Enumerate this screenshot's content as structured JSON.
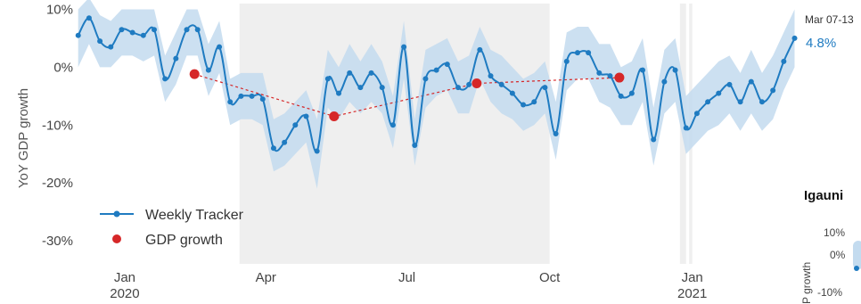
{
  "chart_data": [
    {
      "type": "line",
      "ylabel": "YoY GDP growth",
      "ylim": [
        -34,
        11
      ],
      "yticks": [
        10,
        0,
        -10,
        -20,
        -30
      ],
      "ytick_labels": [
        "10%",
        "0%",
        "-10%",
        "-20%",
        "-30%"
      ],
      "xlim": [
        "2019-12-01",
        "2021-03-10"
      ],
      "xticks": [
        {
          "date": "2020-01-01",
          "label": "Jan",
          "sublabel": "2020"
        },
        {
          "date": "2020-04-01",
          "label": "Apr",
          "sublabel": ""
        },
        {
          "date": "2020-07-01",
          "label": "Jul",
          "sublabel": ""
        },
        {
          "date": "2020-10-01",
          "label": "Oct",
          "sublabel": ""
        },
        {
          "date": "2021-01-01",
          "label": "Jan",
          "sublabel": "2021"
        }
      ],
      "shaded_periods": [
        {
          "start": "2020-03-15",
          "end": "2020-10-01"
        },
        {
          "start": "2020-12-24",
          "end": "2020-12-28"
        },
        {
          "start": "2020-12-30",
          "end": "2021-01-01"
        }
      ],
      "legend": {
        "position": "bottom-left",
        "entries": [
          "Weekly Tracker",
          "GDP growth"
        ]
      },
      "colors": {
        "tracker": "#1f7bc1",
        "band": "#c3dbef",
        "gdp": "#d62728",
        "shade": "#efefef"
      },
      "series": [
        {
          "name": "Weekly Tracker",
          "x": [
            "2019-12-02",
            "2019-12-09",
            "2019-12-16",
            "2019-12-23",
            "2019-12-30",
            "2020-01-06",
            "2020-01-13",
            "2020-01-20",
            "2020-01-27",
            "2020-02-03",
            "2020-02-10",
            "2020-02-17",
            "2020-02-24",
            "2020-03-02",
            "2020-03-09",
            "2020-03-16",
            "2020-03-23",
            "2020-03-30",
            "2020-04-06",
            "2020-04-13",
            "2020-04-20",
            "2020-04-27",
            "2020-05-04",
            "2020-05-11",
            "2020-05-18",
            "2020-05-25",
            "2020-06-01",
            "2020-06-08",
            "2020-06-15",
            "2020-06-22",
            "2020-06-29",
            "2020-07-06",
            "2020-07-13",
            "2020-07-20",
            "2020-07-27",
            "2020-08-03",
            "2020-08-10",
            "2020-08-17",
            "2020-08-24",
            "2020-08-31",
            "2020-09-07",
            "2020-09-14",
            "2020-09-21",
            "2020-09-28",
            "2020-10-05",
            "2020-10-12",
            "2020-10-19",
            "2020-10-26",
            "2020-11-02",
            "2020-11-09",
            "2020-11-16",
            "2020-11-23",
            "2020-11-30",
            "2020-12-07",
            "2020-12-14",
            "2020-12-21",
            "2020-12-28",
            "2021-01-04",
            "2021-01-11",
            "2021-01-18",
            "2021-01-25",
            "2021-02-01",
            "2021-02-08",
            "2021-02-15",
            "2021-02-22",
            "2021-03-01",
            "2021-03-08"
          ],
          "values": [
            5.5,
            8.5,
            4.5,
            3.5,
            6.5,
            6,
            5.5,
            6.5,
            -2,
            1.5,
            6.5,
            6.5,
            -0.5,
            3.5,
            -6,
            -5,
            -5,
            -5.5,
            -14,
            -13,
            -10,
            -8.5,
            -14.5,
            -2,
            -4.5,
            -1,
            -3.5,
            -1,
            -3.5,
            -10,
            3.5,
            -13.5,
            -2,
            -0.5,
            0.5,
            -3.5,
            -3,
            3,
            -1.5,
            -3,
            -4.5,
            -6.5,
            -6,
            -3.5,
            -11.5,
            1,
            2.5,
            2.5,
            -1,
            -1.5,
            -5,
            -4.5,
            -0.5,
            -12.5,
            -2.5,
            -0.5,
            -10.5,
            -8,
            -6,
            -4.5,
            -3,
            -6,
            -2.5,
            -6,
            -4,
            1,
            5
          ],
          "band_lower": [
            0,
            4,
            0,
            0,
            2,
            2,
            1,
            2,
            -6,
            -3,
            2,
            2,
            -5,
            -1,
            -10,
            -9,
            -9,
            -10,
            -18,
            -17,
            -15,
            -13,
            -21,
            -7,
            -9,
            -6,
            -8,
            -6,
            -8,
            -14,
            -2,
            -17,
            -7,
            -5,
            -4,
            -8,
            -8,
            -2,
            -6,
            -8,
            -9,
            -11,
            -10,
            -8,
            -16,
            -4,
            -2,
            -2,
            -6,
            -7,
            -10,
            -10,
            -6,
            -17,
            -8,
            -6,
            -15,
            -13,
            -11,
            -10,
            -8,
            -11,
            -8,
            -11,
            -9,
            -4,
            0
          ],
          "band_upper": [
            10,
            12,
            9,
            8,
            10,
            10,
            10,
            10,
            2,
            6,
            10,
            10,
            4,
            8,
            -2,
            -1,
            -1,
            -1,
            -9,
            -8,
            -6,
            -4,
            -9,
            3,
            0,
            4,
            1,
            4,
            1,
            -5,
            8,
            -9,
            3,
            4,
            5,
            1,
            2,
            7,
            3,
            2,
            0,
            -2,
            -1,
            1,
            -6,
            6,
            7,
            7,
            4,
            4,
            0,
            1,
            5,
            -7,
            3,
            5,
            -5,
            -3,
            -1,
            1,
            2,
            -1,
            3,
            -1,
            2,
            6,
            10
          ]
        },
        {
          "name": "GDP growth",
          "x": [
            "2020-02-15",
            "2020-05-15",
            "2020-08-15",
            "2020-11-15"
          ],
          "values": [
            -1.2,
            -8.5,
            -2.8,
            -1.8
          ]
        }
      ],
      "annotations": [
        {
          "date": "Mar 07-13",
          "value": "4.8%"
        }
      ]
    },
    {
      "type": "line",
      "title": "Igauni",
      "ytick_labels": [
        "10%",
        "0%",
        "-10%"
      ],
      "ylabel_fragment": "P growth"
    }
  ]
}
